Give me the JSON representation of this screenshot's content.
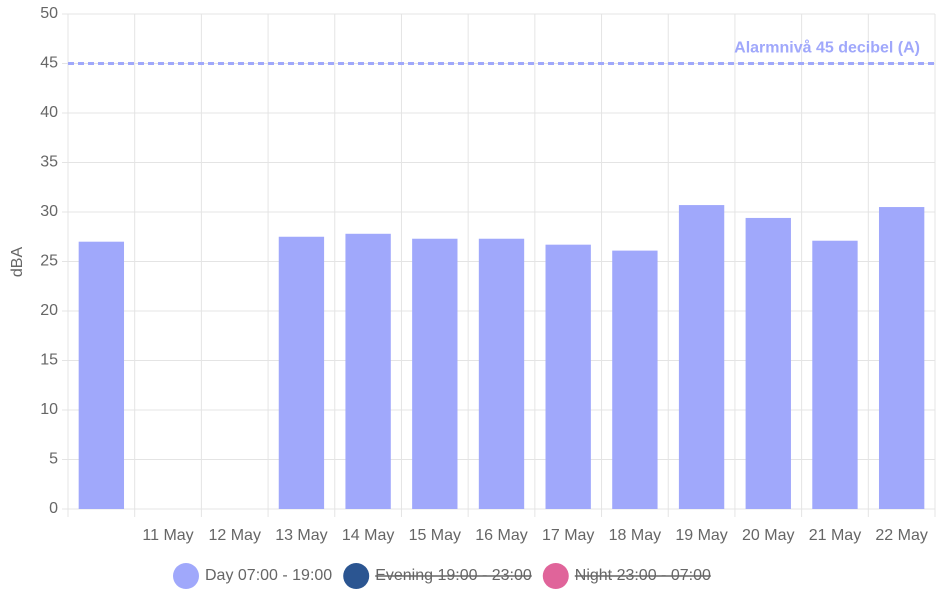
{
  "chart_data": {
    "type": "bar",
    "y_label": "dBA",
    "categories": [
      null,
      "11 May",
      "12 May",
      "13 May",
      "14 May",
      "15 May",
      "16 May",
      "17 May",
      "18 May",
      "19 May",
      "20 May",
      "21 May",
      "22 May"
    ],
    "series": [
      {
        "name": "Day 07:00 - 19:00",
        "color": "#a0a8fb",
        "hidden": false,
        "values": [
          27,
          null,
          null,
          27.5,
          27.8,
          27.3,
          27.3,
          26.7,
          26.1,
          30.7,
          29.4,
          27.1,
          30.5
        ]
      },
      {
        "name": "Evening 19:00 - 23:00",
        "color": "#2b5591",
        "hidden": true,
        "values": [
          null,
          null,
          null,
          null,
          null,
          null,
          null,
          null,
          null,
          null,
          null,
          null,
          null
        ]
      },
      {
        "name": "Night 23:00 - 07:00",
        "color": "#e0649a",
        "hidden": true,
        "values": [
          null,
          null,
          null,
          null,
          null,
          null,
          null,
          null,
          null,
          null,
          null,
          null,
          null
        ]
      }
    ],
    "ylim": [
      0,
      50
    ],
    "yticks": [
      0,
      5,
      10,
      15,
      20,
      25,
      30,
      35,
      40,
      45,
      50
    ],
    "grid": true,
    "legend": "bottom",
    "annotations": [
      {
        "value": 45,
        "label": "Alarmnivå 45 decibel (A)",
        "color": "#a0a8fb"
      }
    ]
  }
}
